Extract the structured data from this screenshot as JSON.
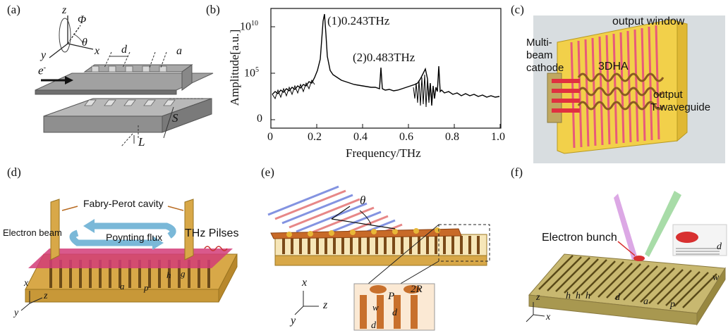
{
  "panels": {
    "a": {
      "label": "(a)",
      "axes": {
        "z": "z",
        "x": "x",
        "y": "y",
        "phi": "Φ",
        "theta": "θ"
      },
      "electron": "e",
      "electron_sup": "-",
      "dims": {
        "d": "d",
        "a": "a",
        "S": "S",
        "L": "L"
      }
    },
    "b": {
      "label": "(b)",
      "peak1": "(1)0.243THz",
      "peak2": "(2)0.483THz",
      "xlabel": "Frequency/THz",
      "ylabel": "Amplitude[a.u.]",
      "yticks": [
        {
          "base": "10",
          "exp": "10"
        },
        {
          "base": "10",
          "exp": "5"
        },
        {
          "base": "0",
          "exp": ""
        }
      ],
      "xticks": [
        "0",
        "0.2",
        "0.4",
        "0.6",
        "0.8",
        "1.0"
      ]
    },
    "c": {
      "label": "(c)",
      "output_window": "output window",
      "cathode_lines": [
        "Multi-",
        "beam",
        "cathode"
      ],
      "dha": "3DHA",
      "waveguide_lines": [
        "output",
        "T-waveguide"
      ]
    },
    "d": {
      "label": "(d)",
      "cavity": "Fabry-Perot cavity",
      "electron_beam": "Electron beam",
      "poynting": "Poynting flux",
      "thz": "THz Pilses",
      "dims": {
        "a": "a",
        "p": "p",
        "h": "h",
        "g": "g"
      },
      "axes": {
        "x": "x",
        "y": "y",
        "z": "z"
      }
    },
    "e": {
      "label": "(e)",
      "theta": "θ",
      "axes": {
        "x": "x",
        "y": "y",
        "z": "z"
      },
      "dims": {
        "P": "P",
        "R": "2R",
        "w": "w",
        "d": "d",
        "d2": "d"
      }
    },
    "f": {
      "label": "(f)",
      "bunch": "Electron bunch",
      "dims": {
        "h1": "h",
        "h2": "h",
        "h3": "h",
        "d": "d",
        "a": "a",
        "p": "p",
        "w": "w",
        "dg": "d"
      },
      "axes": {
        "x": "x",
        "z": "z"
      }
    }
  }
}
